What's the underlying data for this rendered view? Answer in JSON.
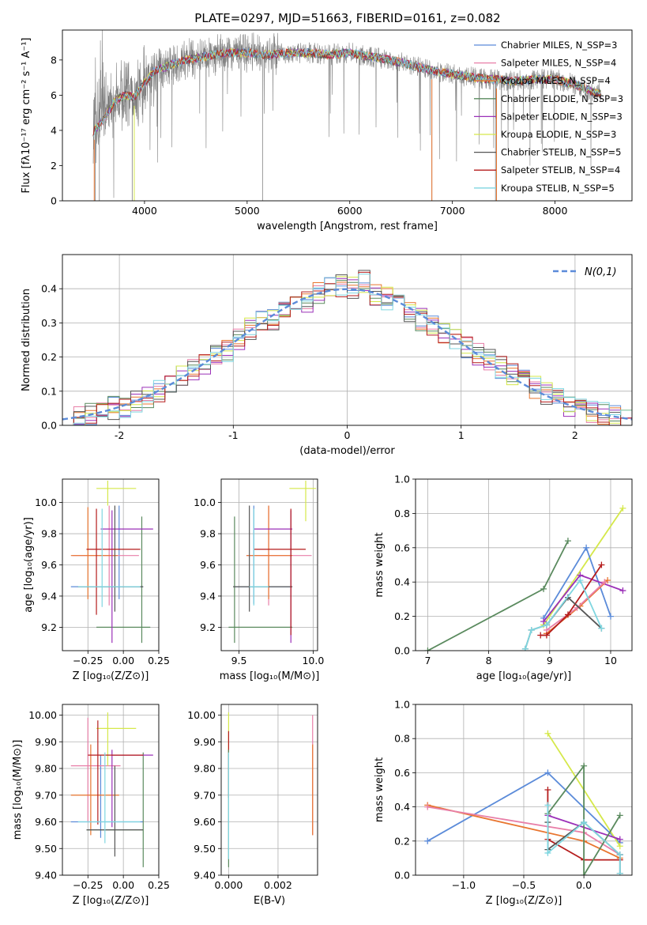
{
  "colors": {
    "c1": "#5b8bd9",
    "c2": "#e87fa8",
    "c3": "#e8752f",
    "c4": "#5a8a5e",
    "c5": "#9b30b8",
    "c6": "#d5e84a",
    "c7": "#555555",
    "c8": "#b51d1d",
    "c9": "#7fd6e0",
    "spec": "#808080",
    "normal": "#5b8bd9"
  },
  "chart_data": [
    {
      "id": "spectrum",
      "type": "line",
      "title": "PLATE=0297, MJD=51663, FIBERID=0161, z=0.082",
      "xlabel": "wavelength [Angstrom, rest frame]",
      "ylabel": "Flux [fλ10⁻¹⁷ erg cm⁻² s⁻¹ A⁻¹]",
      "xlim": [
        3200,
        8750
      ],
      "ylim": [
        0,
        9.7
      ],
      "xticks": [
        4000,
        5000,
        6000,
        7000,
        8000
      ],
      "yticks": [
        0,
        2,
        4,
        6,
        8
      ],
      "grid": false,
      "legend_loc": "right",
      "legend": [
        "Chabrier MILES, N_SSP=3",
        "Salpeter MILES, N_SSP=4",
        "Kroupa MILES, N_SSP=4",
        "Chabrier ELODIE, N_SSP=3",
        "Salpeter ELODIE, N_SSP=3",
        "Kroupa ELODIE, N_SSP=3",
        "Chabrier STELIB, N_SSP=5",
        "Salpeter STELIB, N_SSP=4",
        "Kroupa STELIB, N_SSP=5"
      ],
      "continuum": {
        "x": [
          3500,
          3600,
          3700,
          3800,
          3900,
          4000,
          4100,
          4200,
          4400,
          4600,
          4800,
          5000,
          5200,
          5400,
          5600,
          5800,
          6000,
          6200,
          6400,
          6600,
          6800,
          7000,
          7200,
          7400,
          7600,
          7800,
          8000,
          8200,
          8400
        ],
        "y": [
          3.9,
          4.6,
          5.6,
          6.0,
          5.9,
          6.7,
          7.4,
          7.6,
          8.0,
          8.2,
          8.4,
          8.4,
          8.3,
          8.4,
          8.4,
          8.3,
          8.4,
          8.2,
          8.0,
          7.7,
          7.4,
          7.2,
          7.0,
          6.9,
          6.8,
          6.9,
          6.9,
          6.6,
          6.1
        ]
      }
    },
    {
      "id": "residuals",
      "type": "bar",
      "title": "",
      "xlabel": "(data-model)/error",
      "ylabel": "Normed distribution",
      "xlim": [
        -2.5,
        2.5
      ],
      "ylim": [
        0,
        0.5
      ],
      "xticks": [
        -2,
        -1,
        0,
        1,
        2
      ],
      "yticks": [
        0.0,
        0.1,
        0.2,
        0.3,
        0.4
      ],
      "grid": true,
      "legend_loc": "top-right",
      "legend": [
        "N(0,1)"
      ],
      "bins": [
        -2.5,
        -2.4,
        -2.3,
        -2.2,
        -2.1,
        -2.0,
        -1.9,
        -1.8,
        -1.7,
        -1.6,
        -1.5,
        -1.4,
        -1.3,
        -1.2,
        -1.1,
        -1.0,
        -0.9,
        -0.8,
        -0.7,
        -0.6,
        -0.5,
        -0.4,
        -0.3,
        -0.2,
        -0.1,
        0.0,
        0.1,
        0.2,
        0.3,
        0.4,
        0.5,
        0.6,
        0.7,
        0.8,
        0.9,
        1.0,
        1.1,
        1.2,
        1.3,
        1.4,
        1.5,
        1.6,
        1.7,
        1.8,
        1.9,
        2.0,
        2.1,
        2.2,
        2.3,
        2.4,
        2.5
      ],
      "base": [
        0.018,
        0.022,
        0.03,
        0.04,
        0.05,
        0.055,
        0.07,
        0.085,
        0.1,
        0.115,
        0.14,
        0.16,
        0.18,
        0.2,
        0.22,
        0.25,
        0.28,
        0.3,
        0.31,
        0.33,
        0.35,
        0.36,
        0.39,
        0.4,
        0.41,
        0.4,
        0.42,
        0.38,
        0.37,
        0.35,
        0.33,
        0.31,
        0.29,
        0.27,
        0.25,
        0.23,
        0.21,
        0.19,
        0.17,
        0.15,
        0.13,
        0.11,
        0.09,
        0.075,
        0.06,
        0.05,
        0.04,
        0.035,
        0.03,
        0.027
      ]
    },
    {
      "id": "age-vs-z",
      "type": "scatter",
      "xlabel": "Z [log₁₀(Z/Z⊙)]",
      "ylabel": "age  [log₁₀(age/yr)]",
      "xlim": [
        -0.43,
        0.25
      ],
      "ylim": [
        9.05,
        10.15
      ],
      "xticks": [
        -0.25,
        0.0,
        0.25
      ],
      "xticklabels": [
        "−0.25",
        "0.00",
        "0.25"
      ],
      "yticks": [
        9.2,
        9.4,
        9.6,
        9.8,
        10.0
      ],
      "grid": true,
      "crosses": [
        {
          "c": "c1",
          "x": -0.03,
          "y": 9.46,
          "x0": -0.37,
          "x1": 0.14,
          "y0": 9.38,
          "y1": 9.98
        },
        {
          "c": "c2",
          "x": -0.1,
          "y": 9.66,
          "x0": -0.36,
          "x1": 0.11,
          "y0": 9.34,
          "y1": 9.98
        },
        {
          "c": "c3",
          "x": -0.25,
          "y": 9.66,
          "x0": -0.37,
          "x1": -0.04,
          "y0": 9.38,
          "y1": 9.97
        },
        {
          "c": "c4",
          "x": 0.13,
          "y": 9.2,
          "x0": -0.19,
          "x1": 0.19,
          "y0": 9.1,
          "y1": 9.91
        },
        {
          "c": "c5",
          "x": -0.08,
          "y": 9.83,
          "x0": -0.16,
          "x1": 0.21,
          "y0": 9.1,
          "y1": 9.95
        },
        {
          "c": "c6",
          "x": -0.11,
          "y": 10.09,
          "x0": -0.19,
          "x1": 0.09,
          "y0": 9.98,
          "y1": 10.14
        },
        {
          "c": "c7",
          "x": -0.06,
          "y": 9.46,
          "x0": -0.32,
          "x1": 0.14,
          "y0": 9.3,
          "y1": 9.98
        },
        {
          "c": "c8",
          "x": -0.19,
          "y": 9.7,
          "x0": -0.26,
          "x1": 0.12,
          "y0": 9.28,
          "y1": 9.96
        },
        {
          "c": "c9",
          "x": -0.15,
          "y": 9.46,
          "x0": -0.32,
          "x1": 0.12,
          "y0": 9.33,
          "y1": 9.96
        }
      ]
    },
    {
      "id": "age-vs-mass",
      "type": "scatter",
      "xlabel": "mass [log₁₀(M/M⊙)]",
      "ylabel": "",
      "xlim": [
        9.38,
        10.03
      ],
      "ylim": [
        9.05,
        10.15
      ],
      "xticks": [
        9.5,
        10.0
      ],
      "xticklabels": [
        "9.5",
        "10.0"
      ],
      "yticks": [
        9.2,
        9.4,
        9.6,
        9.8,
        10.0
      ],
      "grid": true,
      "crosses": [
        {
          "c": "c1",
          "x": 9.6,
          "y": 9.46,
          "x0": 9.47,
          "x1": 9.86,
          "y0": 9.35,
          "y1": 9.98
        },
        {
          "c": "c2",
          "x": 9.7,
          "y": 9.66,
          "x0": 9.55,
          "x1": 9.99,
          "y0": 9.34,
          "y1": 9.98
        },
        {
          "c": "c3",
          "x": 9.7,
          "y": 9.66,
          "x0": 9.55,
          "x1": 9.86,
          "y0": 9.38,
          "y1": 9.98
        },
        {
          "c": "c4",
          "x": 9.47,
          "y": 9.2,
          "x0": 9.43,
          "x1": 9.86,
          "y0": 9.1,
          "y1": 9.91
        },
        {
          "c": "c5",
          "x": 9.85,
          "y": 9.83,
          "x0": 9.6,
          "x1": 9.86,
          "y0": 9.1,
          "y1": 9.95
        },
        {
          "c": "c6",
          "x": 9.95,
          "y": 10.09,
          "x0": 9.84,
          "x1": 10.02,
          "y0": 9.88,
          "y1": 10.14
        },
        {
          "c": "c7",
          "x": 9.57,
          "y": 9.46,
          "x0": 9.46,
          "x1": 9.86,
          "y0": 9.3,
          "y1": 9.98
        },
        {
          "c": "c8",
          "x": 9.85,
          "y": 9.7,
          "x0": 9.6,
          "x1": 9.95,
          "y0": 9.15,
          "y1": 9.96
        },
        {
          "c": "c9",
          "x": 9.6,
          "y": 9.46,
          "x0": 9.57,
          "x1": 9.7,
          "y0": 9.34,
          "y1": 9.96
        }
      ]
    },
    {
      "id": "weight-vs-age",
      "type": "line",
      "xlabel": "age  [log₁₀(age/yr)]",
      "ylabel": "mass weight",
      "xlim": [
        6.8,
        10.35
      ],
      "ylim": [
        0,
        1
      ],
      "xticks": [
        7,
        8,
        9,
        10
      ],
      "yticks": [
        0.0,
        0.2,
        0.4,
        0.6,
        0.8,
        1.0
      ],
      "grid": true,
      "series": [
        {
          "c": "c4",
          "x": [
            7.0,
            8.9,
            9.3
          ],
          "y": [
            0.0,
            0.36,
            0.64
          ]
        },
        {
          "c": "c6",
          "x": [
            8.9,
            10.2
          ],
          "y": [
            0.15,
            0.83
          ]
        },
        {
          "c": "c1",
          "x": [
            8.9,
            9.6,
            10.0
          ],
          "y": [
            0.19,
            0.6,
            0.2
          ]
        },
        {
          "c": "c5",
          "x": [
            8.9,
            9.5,
            10.2
          ],
          "y": [
            0.17,
            0.44,
            0.35
          ]
        },
        {
          "c": "c3",
          "x": [
            8.95,
            9.5,
            9.95
          ],
          "y": [
            0.1,
            0.26,
            0.41
          ]
        },
        {
          "c": "c2",
          "x": [
            8.95,
            9.45,
            9.9
          ],
          "y": [
            0.12,
            0.25,
            0.4
          ]
        },
        {
          "c": "c8",
          "x": [
            8.85,
            8.95,
            9.3,
            9.85
          ],
          "y": [
            0.09,
            0.09,
            0.21,
            0.5
          ]
        },
        {
          "c": "c7",
          "x": [
            8.6,
            8.7,
            8.95,
            9.3,
            9.85
          ],
          "y": [
            0.01,
            0.12,
            0.15,
            0.31,
            0.13
          ]
        },
        {
          "c": "c9",
          "x": [
            8.6,
            8.7,
            8.95,
            9.5,
            9.85
          ],
          "y": [
            0.01,
            0.12,
            0.15,
            0.41,
            0.13
          ]
        }
      ]
    },
    {
      "id": "mass-vs-z",
      "type": "scatter",
      "xlabel": "Z [log₁₀(Z/Z⊙)]",
      "ylabel": "mass [log₁₀(M/M⊙)]",
      "xlim": [
        -0.43,
        0.25
      ],
      "ylim": [
        9.4,
        10.04
      ],
      "xticks": [
        -0.25,
        0.0,
        0.25
      ],
      "xticklabels": [
        "−0.25",
        "0.00",
        "0.25"
      ],
      "yticks": [
        9.4,
        9.5,
        9.6,
        9.7,
        9.8,
        9.9,
        10.0
      ],
      "grid": true,
      "crosses": [
        {
          "c": "c1",
          "x": -0.16,
          "y": 9.6,
          "x0": -0.37,
          "x1": 0.14,
          "y0": 9.54,
          "y1": 9.85
        },
        {
          "c": "c2",
          "x": -0.25,
          "y": 9.81,
          "x0": -0.37,
          "x1": -0.02,
          "y0": 9.6,
          "y1": 9.99
        },
        {
          "c": "c3",
          "x": -0.23,
          "y": 9.7,
          "x0": -0.37,
          "x1": -0.03,
          "y0": 9.55,
          "y1": 9.89
        },
        {
          "c": "c4",
          "x": 0.14,
          "y": 9.57,
          "x0": -0.26,
          "x1": 0.14,
          "y0": 9.43,
          "y1": 9.86
        },
        {
          "c": "c5",
          "x": -0.08,
          "y": 9.85,
          "x0": -0.08,
          "x1": 0.21,
          "y0": 9.58,
          "y1": 9.87
        },
        {
          "c": "c6",
          "x": -0.11,
          "y": 9.95,
          "x0": -0.19,
          "x1": 0.09,
          "y0": 9.81,
          "y1": 10.01
        },
        {
          "c": "c7",
          "x": -0.06,
          "y": 9.57,
          "x0": -0.26,
          "x1": 0.14,
          "y0": 9.47,
          "y1": 9.81
        },
        {
          "c": "c8",
          "x": -0.18,
          "y": 9.85,
          "x0": -0.25,
          "x1": 0.14,
          "y0": 9.59,
          "y1": 9.98
        },
        {
          "c": "c9",
          "x": -0.13,
          "y": 9.6,
          "x0": -0.32,
          "x1": 0.12,
          "y0": 9.52,
          "y1": 9.86
        }
      ]
    },
    {
      "id": "mass-vs-ebv",
      "type": "scatter",
      "xlabel": "E(B-V)",
      "ylabel": "",
      "xlim": [
        -0.0003,
        0.0036
      ],
      "ylim": [
        9.4,
        10.04
      ],
      "xticks": [
        0.0,
        0.002
      ],
      "xticklabels": [
        "0.000",
        "0.002"
      ],
      "yticks": [
        9.4,
        9.5,
        9.6,
        9.7,
        9.8,
        9.9,
        10.0
      ],
      "grid": true,
      "crosses": [
        {
          "c": "c6",
          "x": 0.0,
          "y": 9.95,
          "x0": 0.0,
          "x1": 0.0,
          "y0": 9.84,
          "y1": 10.01
        },
        {
          "c": "c8",
          "x": 0.0,
          "y": 9.85,
          "x0": 0.0,
          "x1": 0.0,
          "y0": 9.69,
          "y1": 9.94
        },
        {
          "c": "c4",
          "x": 0.0,
          "y": 9.57,
          "x0": 0.0,
          "x1": 0.0,
          "y0": 9.43,
          "y1": 9.87
        },
        {
          "c": "c9",
          "x": 0.0,
          "y": 9.6,
          "x0": 0.0,
          "x1": 0.0,
          "y0": 9.46,
          "y1": 9.86
        },
        {
          "c": "c2",
          "x": 0.0034,
          "y": 9.81,
          "x0": 0.0034,
          "x1": 0.0034,
          "y0": 9.55,
          "y1": 10.0
        },
        {
          "c": "c3",
          "x": 0.0034,
          "y": 9.7,
          "x0": 0.0034,
          "x1": 0.0034,
          "y0": 9.55,
          "y1": 9.89
        }
      ]
    },
    {
      "id": "weight-vs-z",
      "type": "line",
      "xlabel": "Z [log₁₀(Z/Z⊙)]",
      "ylabel": "mass weight",
      "xlim": [
        -1.4,
        0.4
      ],
      "ylim": [
        0,
        1
      ],
      "xticks": [
        -1.0,
        -0.5,
        0.0
      ],
      "xticklabels": [
        "−1.0",
        "−0.5",
        "0.0"
      ],
      "yticks": [
        0.0,
        0.2,
        0.4,
        0.6,
        0.8,
        1.0
      ],
      "grid": true,
      "series": [
        {
          "c": "c1",
          "x": [
            -1.3,
            -0.3,
            0.3
          ],
          "y": [
            0.2,
            0.6,
            0.19
          ]
        },
        {
          "c": "c3",
          "x": [
            -1.3,
            0.0,
            0.3
          ],
          "y": [
            0.41,
            0.2,
            0.1
          ]
        },
        {
          "c": "c2",
          "x": [
            -1.3,
            0.0,
            0.3
          ],
          "y": [
            0.4,
            0.25,
            0.12
          ]
        },
        {
          "c": "c6",
          "x": [
            -0.3,
            0.3
          ],
          "y": [
            0.83,
            0.17
          ]
        },
        {
          "c": "c5",
          "x": [
            -0.3,
            0.3
          ],
          "y": [
            0.35,
            0.21
          ]
        },
        {
          "c": "c8",
          "x": [
            -0.3,
            -0.3,
            0.0,
            0.3
          ],
          "y": [
            0.5,
            0.21,
            0.09,
            0.09
          ]
        },
        {
          "c": "c4",
          "x": [
            -0.3,
            0.0,
            0.0,
            0.3
          ],
          "y": [
            0.36,
            0.64,
            0.0,
            0.35
          ]
        },
        {
          "c": "c7",
          "x": [
            -0.3,
            -0.3,
            0.0,
            0.3,
            0.3
          ],
          "y": [
            0.31,
            0.15,
            0.31,
            0.12,
            0.01
          ]
        },
        {
          "c": "c9",
          "x": [
            -0.3,
            -0.3,
            0.0,
            0.3,
            0.3
          ],
          "y": [
            0.41,
            0.13,
            0.31,
            0.12,
            0.01
          ]
        }
      ]
    }
  ]
}
